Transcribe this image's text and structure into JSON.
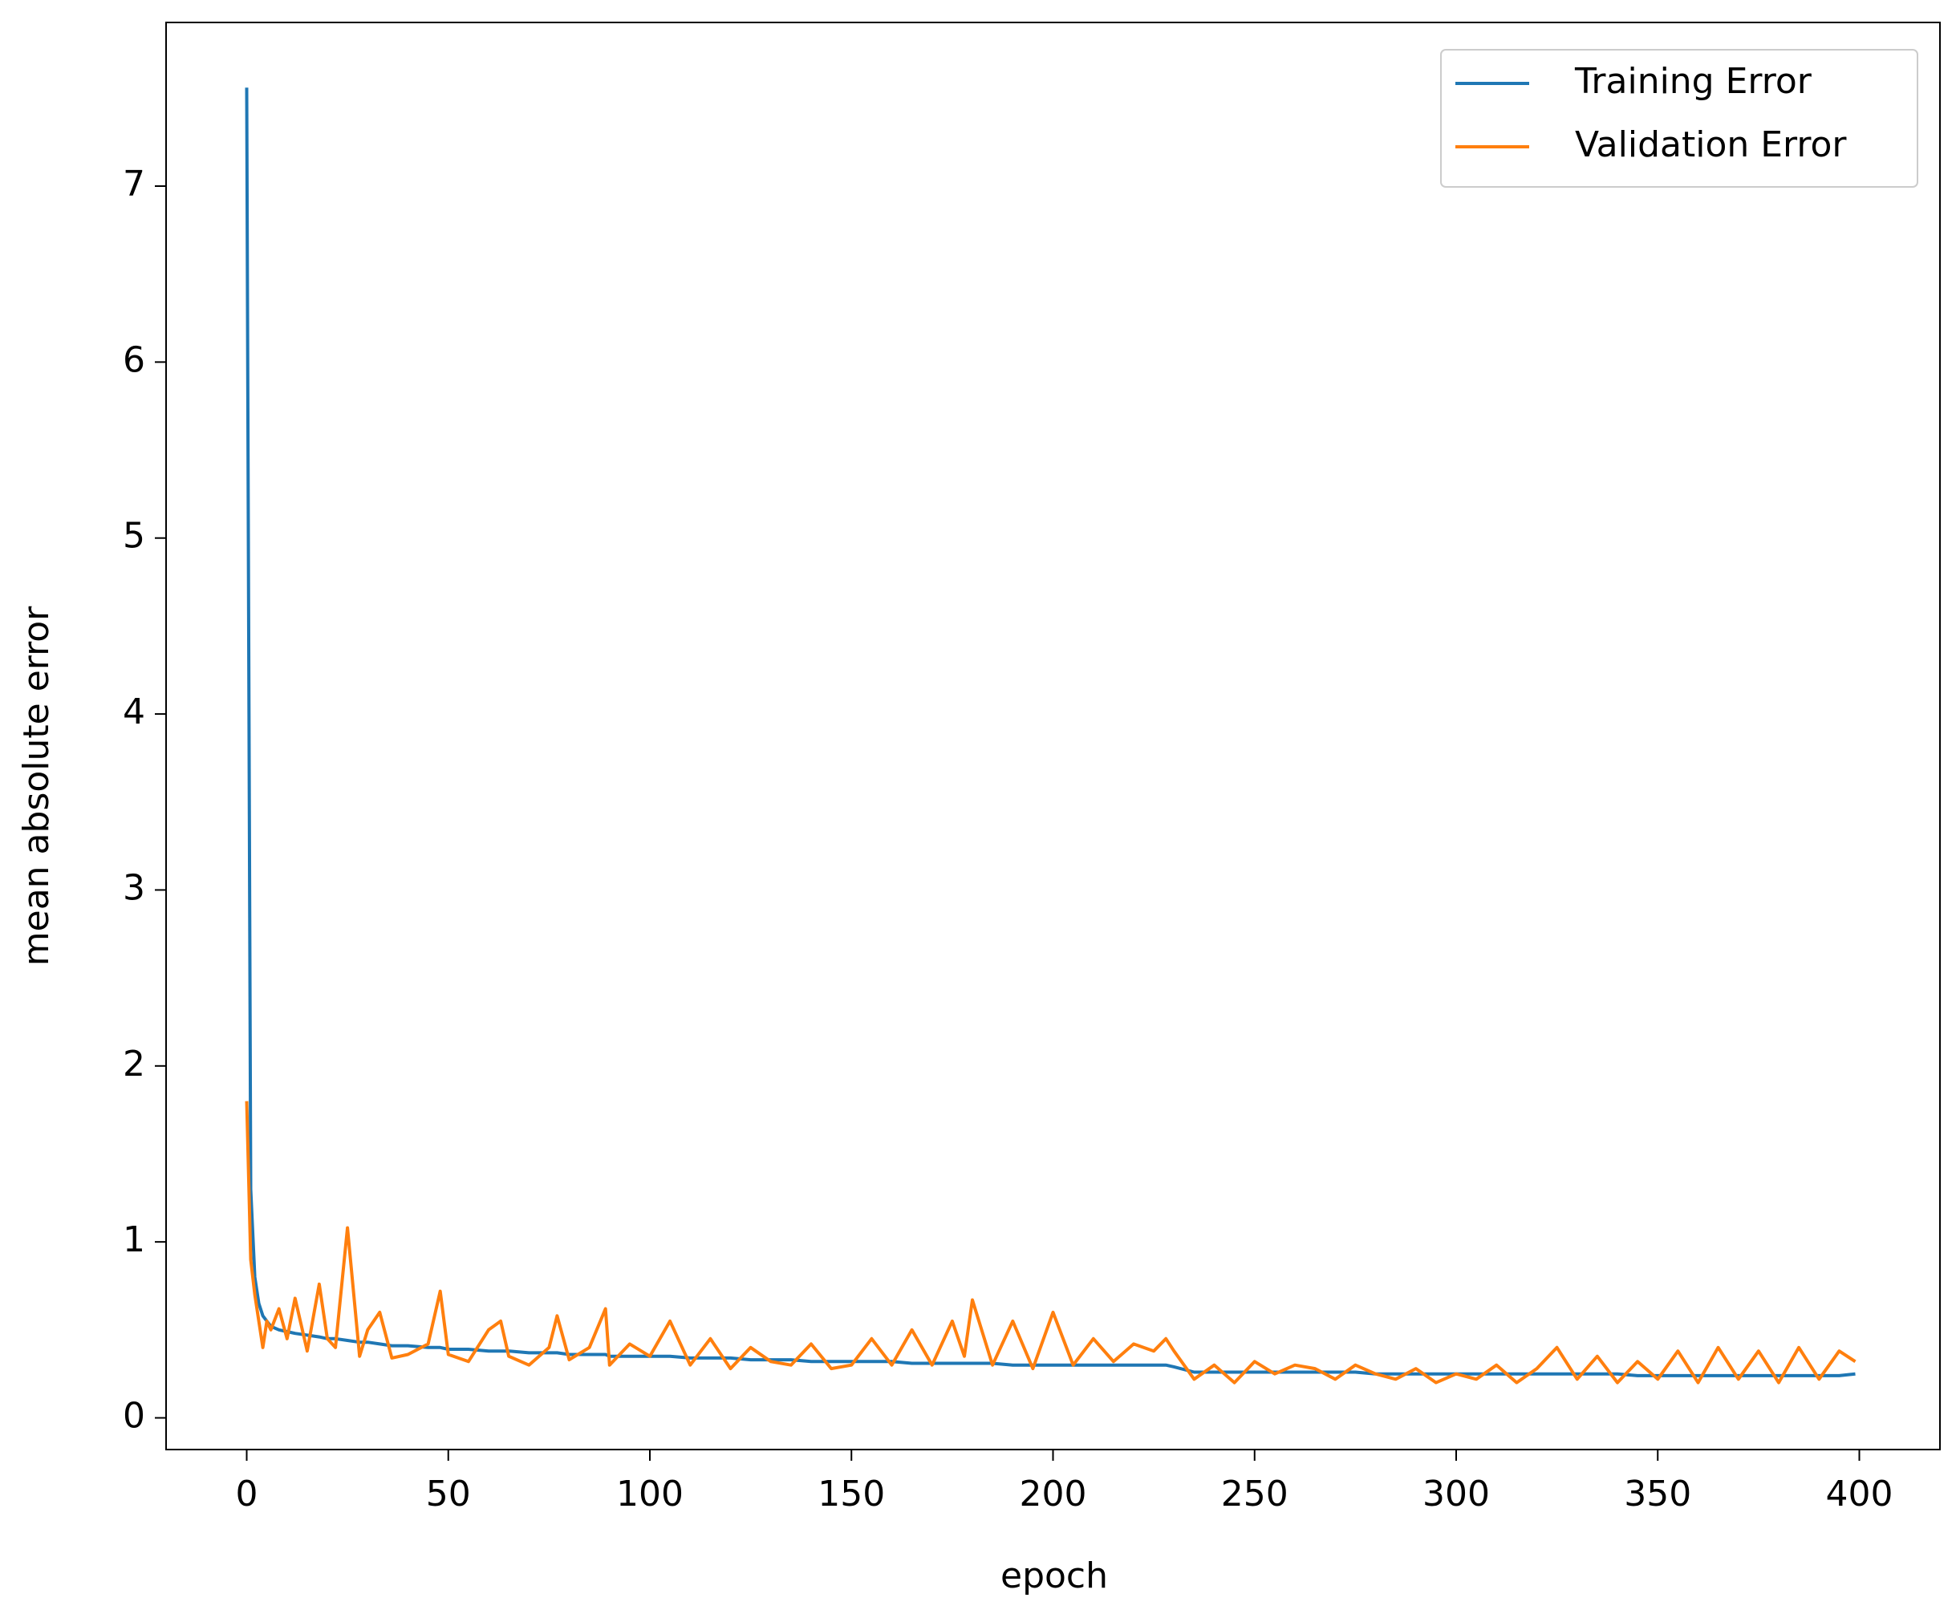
{
  "chart_data": {
    "type": "line",
    "x_label": "epoch",
    "y_label": "mean absolute error",
    "x": [
      0,
      1,
      2,
      3,
      4,
      5,
      6,
      8,
      10,
      12,
      15,
      18,
      20,
      22,
      25,
      28,
      30,
      33,
      36,
      40,
      45,
      48,
      50,
      55,
      60,
      63,
      65,
      70,
      75,
      77,
      80,
      85,
      89,
      90,
      95,
      100,
      105,
      110,
      115,
      120,
      125,
      130,
      135,
      140,
      145,
      150,
      155,
      160,
      165,
      170,
      175,
      178,
      180,
      185,
      190,
      195,
      200,
      205,
      210,
      215,
      220,
      225,
      228,
      230,
      235,
      240,
      245,
      250,
      255,
      260,
      265,
      270,
      275,
      280,
      285,
      290,
      295,
      300,
      305,
      310,
      315,
      320,
      325,
      330,
      335,
      340,
      345,
      350,
      355,
      360,
      365,
      370,
      375,
      380,
      385,
      390,
      395,
      399
    ],
    "series": [
      {
        "name": "Training Error",
        "color": "#1f77b4",
        "values": [
          7.56,
          1.3,
          0.8,
          0.65,
          0.58,
          0.55,
          0.52,
          0.5,
          0.49,
          0.48,
          0.47,
          0.46,
          0.45,
          0.45,
          0.44,
          0.43,
          0.43,
          0.42,
          0.41,
          0.41,
          0.4,
          0.4,
          0.39,
          0.39,
          0.38,
          0.38,
          0.38,
          0.37,
          0.37,
          0.37,
          0.36,
          0.36,
          0.36,
          0.35,
          0.35,
          0.35,
          0.35,
          0.34,
          0.34,
          0.34,
          0.33,
          0.33,
          0.33,
          0.32,
          0.32,
          0.32,
          0.32,
          0.32,
          0.31,
          0.31,
          0.31,
          0.31,
          0.31,
          0.31,
          0.3,
          0.3,
          0.3,
          0.3,
          0.3,
          0.3,
          0.3,
          0.3,
          0.3,
          0.29,
          0.26,
          0.26,
          0.26,
          0.26,
          0.26,
          0.26,
          0.26,
          0.26,
          0.26,
          0.25,
          0.25,
          0.25,
          0.25,
          0.25,
          0.25,
          0.25,
          0.25,
          0.25,
          0.25,
          0.25,
          0.25,
          0.25,
          0.24,
          0.24,
          0.24,
          0.24,
          0.24,
          0.24,
          0.24,
          0.24,
          0.24,
          0.24,
          0.24,
          0.25
        ]
      },
      {
        "name": "Validation Error",
        "color": "#ff7f0e",
        "values": [
          1.8,
          0.9,
          0.7,
          0.55,
          0.4,
          0.55,
          0.5,
          0.62,
          0.45,
          0.68,
          0.38,
          0.76,
          0.45,
          0.4,
          1.08,
          0.35,
          0.5,
          0.6,
          0.34,
          0.36,
          0.42,
          0.72,
          0.36,
          0.32,
          0.5,
          0.55,
          0.35,
          0.3,
          0.4,
          0.58,
          0.33,
          0.4,
          0.62,
          0.3,
          0.42,
          0.35,
          0.55,
          0.3,
          0.45,
          0.28,
          0.4,
          0.32,
          0.3,
          0.42,
          0.28,
          0.3,
          0.45,
          0.3,
          0.5,
          0.3,
          0.55,
          0.35,
          0.67,
          0.3,
          0.55,
          0.28,
          0.6,
          0.3,
          0.45,
          0.32,
          0.42,
          0.38,
          0.45,
          0.38,
          0.22,
          0.3,
          0.2,
          0.32,
          0.25,
          0.3,
          0.28,
          0.22,
          0.3,
          0.25,
          0.22,
          0.28,
          0.2,
          0.25,
          0.22,
          0.3,
          0.2,
          0.28,
          0.4,
          0.22,
          0.35,
          0.2,
          0.32,
          0.22,
          0.38,
          0.2,
          0.4,
          0.22,
          0.38,
          0.2,
          0.4,
          0.22,
          0.38,
          0.32
        ]
      }
    ],
    "xlim": [
      -20,
      420
    ],
    "ylim": [
      -0.18,
      7.93
    ],
    "xticks": [
      0,
      50,
      100,
      150,
      200,
      250,
      300,
      350,
      400
    ],
    "yticks": [
      0,
      1,
      2,
      3,
      4,
      5,
      6,
      7
    ],
    "legend": "upper right",
    "grid": false
  }
}
